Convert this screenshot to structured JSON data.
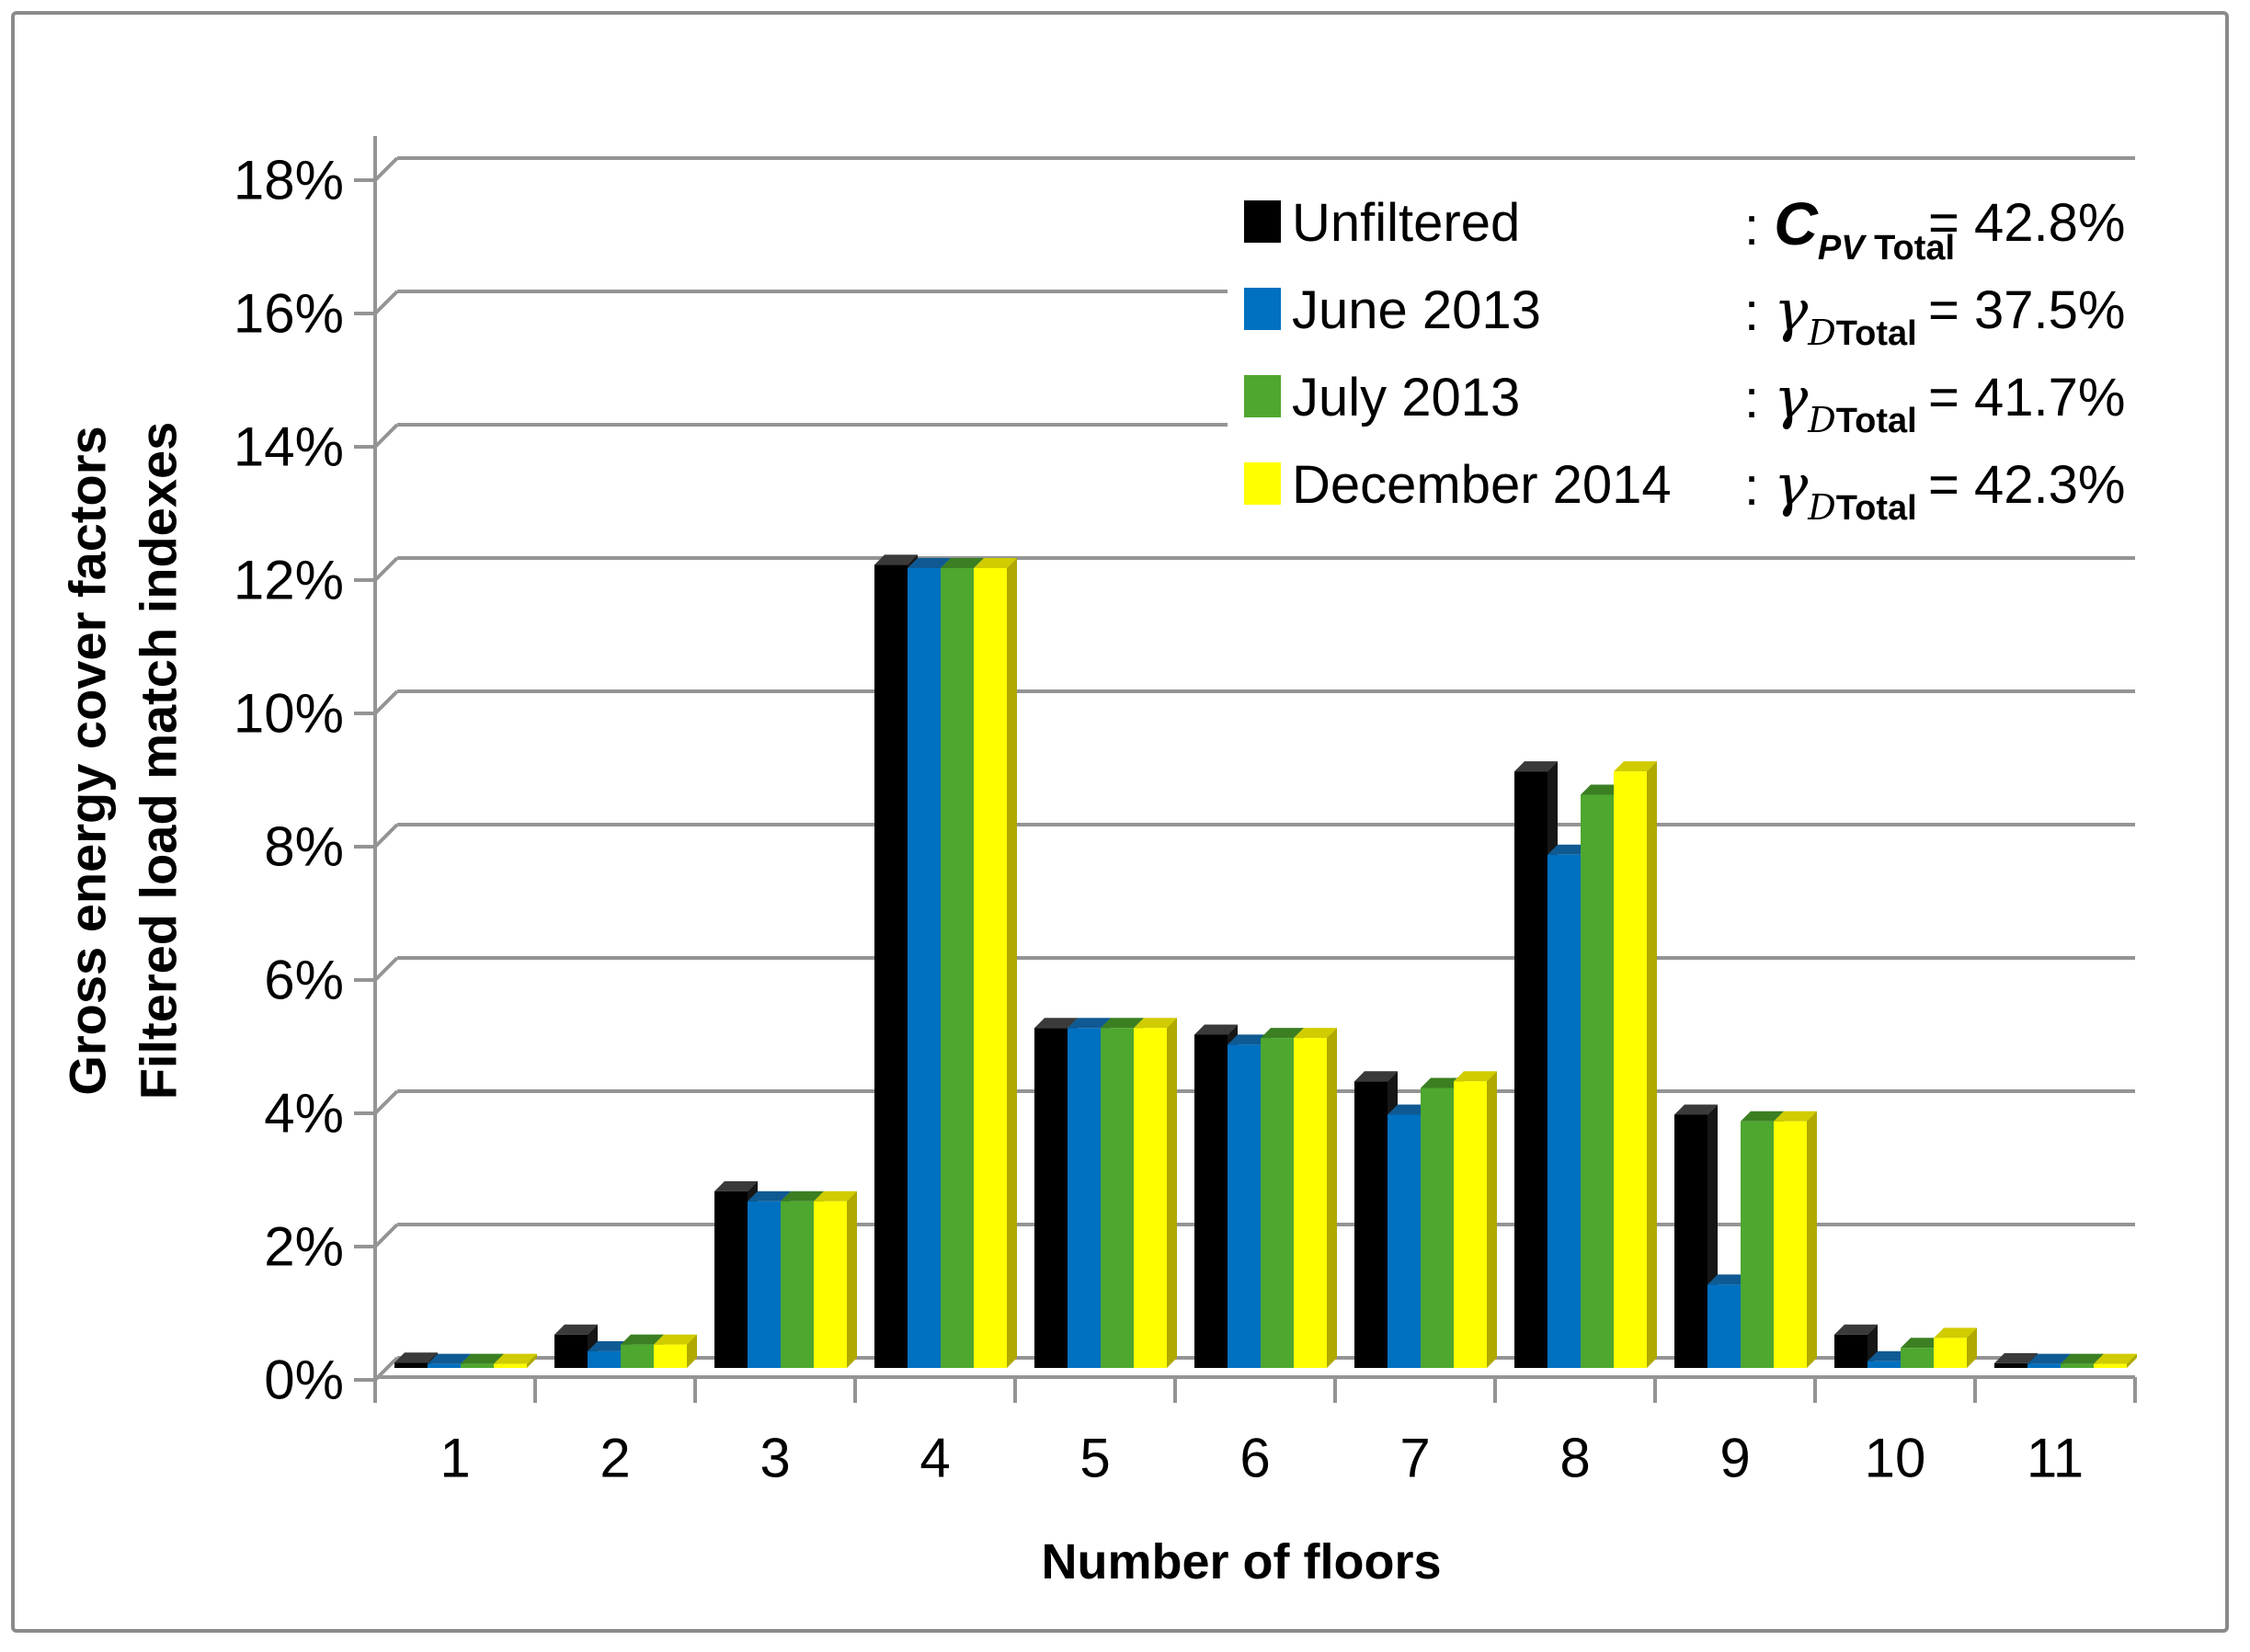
{
  "figure": {
    "background": "#FFFFFF",
    "border_color": "#8A8A8A",
    "grid_color": "#949494",
    "axis_color": "#949494",
    "text_color": "#000000"
  },
  "chart_data": {
    "type": "bar",
    "style": "clustered-3d-columns",
    "title": "",
    "xlabel": "Number of floors",
    "ylabel_line1": "Gross energy cover factors",
    "ylabel_line2": "Filtered load match indexes",
    "categories": [
      "1",
      "2",
      "3",
      "4",
      "5",
      "6",
      "7",
      "8",
      "9",
      "10",
      "11"
    ],
    "y_axis": {
      "min": 0,
      "max": 18,
      "step": 2,
      "tick_labels": [
        "0%",
        "2%",
        "4%",
        "6%",
        "8%",
        "10%",
        "12%",
        "14%",
        "16%",
        "18%"
      ]
    },
    "grid": true,
    "legend_position": "top-right-inside",
    "series": [
      {
        "name": "Unfiltered",
        "color": "#000000",
        "top_color": "#3A3A3A",
        "side_color": "#161616",
        "values": [
          0.08,
          0.5,
          2.65,
          12.05,
          5.1,
          5.0,
          4.3,
          8.95,
          3.8,
          0.5,
          0.07
        ]
      },
      {
        "name": "June 2013",
        "color": "#0070C0",
        "top_color": "#0F5astro",
        "side_color": "#0C4B7E",
        "values": [
          0.06,
          0.25,
          2.5,
          12.0,
          5.1,
          4.85,
          3.8,
          7.7,
          1.25,
          0.1,
          0.06
        ]
      },
      {
        "name": "July 2013",
        "color": "#4EA72E",
        "top_color": "#3B7F22",
        "side_color": "#2F6A1C",
        "values": [
          0.06,
          0.35,
          2.5,
          12.0,
          5.1,
          4.95,
          4.2,
          8.6,
          3.7,
          0.3,
          0.06
        ]
      },
      {
        "name": "December 2014",
        "color": "#FFFF00",
        "top_color": "#D0CC00",
        "side_color": "#AFA900",
        "values": [
          0.06,
          0.35,
          2.5,
          12.0,
          5.1,
          4.95,
          4.3,
          8.95,
          3.7,
          0.45,
          0.06
        ]
      }
    ],
    "series_top_colors_fix": {
      "June 2013": "#0F5A93"
    }
  },
  "legend": {
    "items": [
      {
        "label": "Unfiltered",
        "swatch_color": "#000000",
        "colon": ":",
        "symbol": "C",
        "symbol_kind": "C",
        "sub_italic": "PV",
        "sub_bold": "Total",
        "equals": "=",
        "value": "42.8%"
      },
      {
        "label": "June 2013",
        "swatch_color": "#0070C0",
        "colon": ":",
        "symbol": "γ",
        "symbol_kind": "gamma",
        "sub_italic": "D",
        "sub_bold": "Total",
        "equals": "=",
        "value": "37.5%"
      },
      {
        "label": "July 2013",
        "swatch_color": "#4EA72E",
        "colon": ":",
        "symbol": "γ",
        "symbol_kind": "gamma",
        "sub_italic": "D",
        "sub_bold": "Total",
        "equals": "=",
        "value": "41.7%"
      },
      {
        "label": "December 2014",
        "swatch_color": "#FFFF00",
        "colon": ":",
        "symbol": "γ",
        "symbol_kind": "gamma",
        "sub_italic": "D",
        "sub_bold": "Total",
        "equals": "=",
        "value": "42.3%"
      }
    ]
  }
}
